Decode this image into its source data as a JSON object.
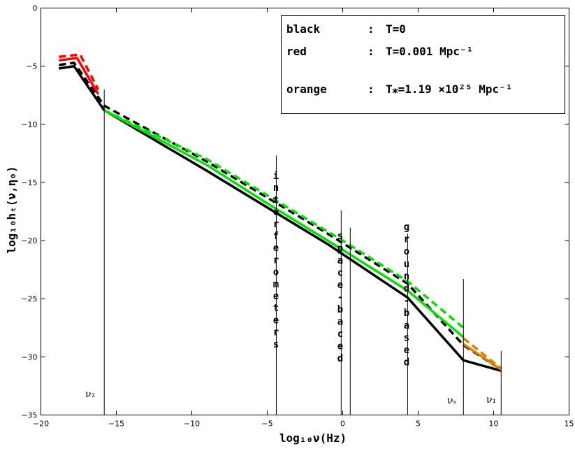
{
  "chart_data": {
    "type": "line",
    "xlabel": "log₁₀ν(Hz)",
    "ylabel": "log₁₀hₜ(ν,η₀)",
    "xlim": [
      -20,
      15
    ],
    "ylim": [
      -35,
      0
    ],
    "x_ticks": [
      "−20",
      "−15",
      "−10",
      "−5",
      "0",
      "5",
      "10",
      "15"
    ],
    "y_ticks": [
      "0",
      "−5",
      "−10",
      "−15",
      "−20",
      "−25",
      "−30",
      "−35"
    ],
    "grid": false,
    "legend": {
      "placement": "top-right",
      "entries": [
        {
          "key": "black",
          "sep": ":",
          "label": "T=0"
        },
        {
          "key": "red",
          "sep": ":",
          "label": "T=0.001 Mpc⁻¹"
        },
        {
          "key": "orange",
          "sep": ":",
          "label": "T⁎=1.19 ×10²⁵ Mpc⁻¹"
        }
      ]
    },
    "series": [
      {
        "color": "#000000",
        "style": "solid",
        "x": [
          -18.8,
          -17.8,
          -15.8,
          -9.0,
          -1.0,
          4.3,
          8.0,
          10.5
        ],
        "y": [
          -5.2,
          -5.0,
          -8.8,
          -14.0,
          -20.3,
          -24.9,
          -30.3,
          -31.2
        ]
      },
      {
        "color": "#000000",
        "style": "dashed",
        "x": [
          -18.8,
          -17.8,
          -15.8,
          -9.0,
          -1.0,
          4.3,
          8.0,
          10.5
        ],
        "y": [
          -4.9,
          -4.7,
          -8.4,
          -13.2,
          -19.4,
          -23.7,
          -29.0,
          -31.1
        ]
      },
      {
        "color": "#ff0000",
        "style": "solid",
        "x": [
          -18.8,
          -17.6,
          -16.2
        ],
        "y": [
          -4.5,
          -4.3,
          -7.4
        ]
      },
      {
        "color": "#ff0000",
        "style": "dashed",
        "x": [
          -18.8,
          -17.4,
          -16.2
        ],
        "y": [
          -4.2,
          -4.0,
          -7.0
        ]
      },
      {
        "color": "#00e000",
        "style": "solid",
        "x": [
          -15.8,
          -9.0,
          -5.0,
          0.0,
          4.3,
          8.0
        ],
        "y": [
          -8.8,
          -13.5,
          -16.8,
          -20.8,
          -24.3,
          -28.3
        ]
      },
      {
        "color": "#00e000",
        "style": "dashed",
        "x": [
          -15.8,
          -9.0,
          -5.0,
          0.0,
          4.3,
          8.0
        ],
        "y": [
          -8.8,
          -13.0,
          -16.1,
          -20.0,
          -23.5,
          -27.5
        ]
      },
      {
        "color": "#d98000",
        "style": "solid",
        "x": [
          8.0,
          10.5
        ],
        "y": [
          -28.9,
          -31.1
        ]
      },
      {
        "color": "#d98000",
        "style": "dashed",
        "x": [
          8.0,
          10.5
        ],
        "y": [
          -28.4,
          -31.0
        ]
      }
    ],
    "vertical_lines": [
      {
        "x": -15.8,
        "y_top": -7.0
      },
      {
        "x": -4.4,
        "y_top": -12.7
      },
      {
        "x": -0.1,
        "y_top": -17.4
      },
      {
        "x": 0.5,
        "y_top": -18.9
      },
      {
        "x": 4.3,
        "y_top": -19.4
      },
      {
        "x": 8.0,
        "y_top": -23.3
      },
      {
        "x": 10.5,
        "y_top": -29.5
      }
    ],
    "annotations": {
      "interferometers": "interferometers",
      "space_based": "space-baced",
      "ground_based": "ground-based",
      "nu2": "ν₂",
      "nus": "νₛ",
      "nu1": "ν₁"
    }
  }
}
